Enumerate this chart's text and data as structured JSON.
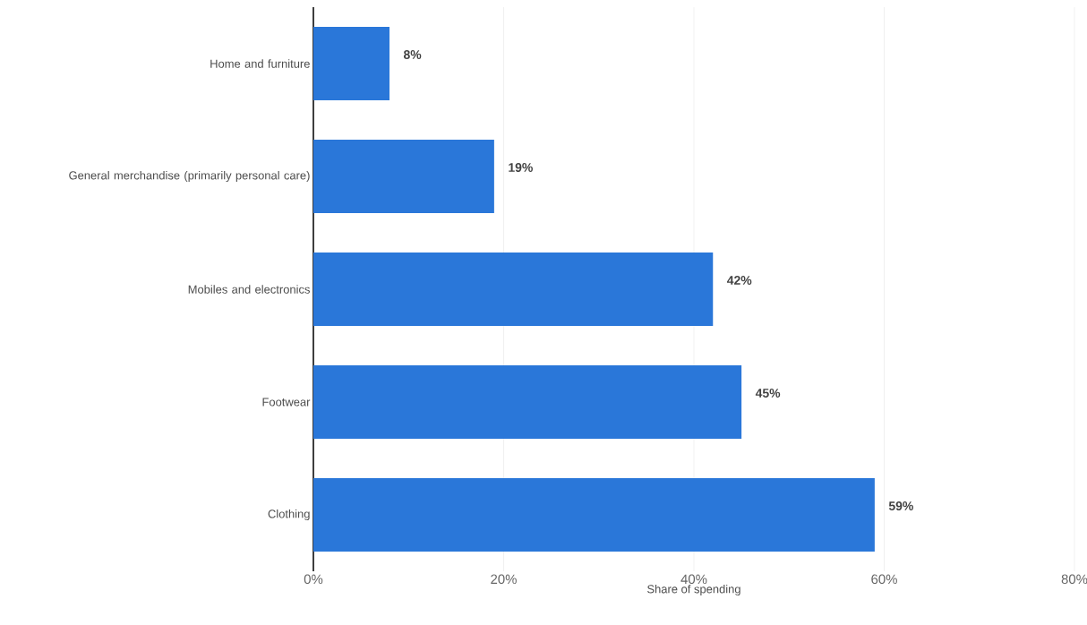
{
  "chart_data": {
    "type": "bar",
    "orientation": "horizontal",
    "xlabel": "Share of spending",
    "categories": [
      "Home and furniture",
      "General merchandise (primarily personal care)",
      "Mobiles and electronics",
      "Footwear",
      "Clothing"
    ],
    "values": [
      8,
      19,
      42,
      45,
      59
    ],
    "value_labels": [
      "8%",
      "19%",
      "42%",
      "45%",
      "59%"
    ],
    "color": "#2a77d9",
    "xlim": [
      0,
      80
    ],
    "xticks": [
      {
        "value": 0,
        "label": "0%"
      },
      {
        "value": 20,
        "label": "20%"
      },
      {
        "value": 40,
        "label": "40%"
      },
      {
        "value": 60,
        "label": "60%"
      },
      {
        "value": 80,
        "label": "80%"
      }
    ],
    "grid": "x"
  }
}
